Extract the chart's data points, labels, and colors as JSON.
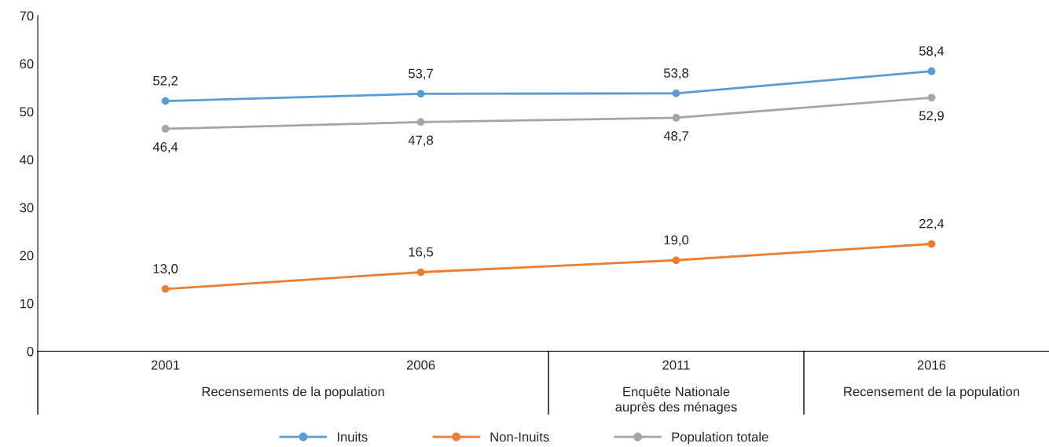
{
  "chart_data": {
    "type": "line",
    "categories": [
      "2001",
      "2006",
      "2011",
      "2016"
    ],
    "series": [
      {
        "name": "Inuits",
        "color": "#5b9bd5",
        "values": [
          52.2,
          53.7,
          53.8,
          58.4
        ],
        "value_labels": [
          "52,2",
          "53,7",
          "53,8",
          "58,4"
        ]
      },
      {
        "name": "Non-Inuits",
        "color": "#ed7d31",
        "values": [
          13.0,
          16.5,
          19.0,
          22.4
        ],
        "value_labels": [
          "13,0",
          "16,5",
          "19,0",
          "22,4"
        ]
      },
      {
        "name": "Population totale",
        "color": "#a5a5a5",
        "values": [
          46.4,
          47.8,
          48.7,
          52.9
        ],
        "value_labels": [
          "46,4",
          "47,8",
          "48,7",
          "52,9"
        ]
      }
    ],
    "ylim": [
      0,
      70
    ],
    "yticks": [
      0,
      10,
      20,
      30,
      40,
      50,
      60,
      70
    ],
    "annotations": [
      "Recensements de la population",
      "Enquête Nationale\nauprès des ménages",
      "Recensement de la population"
    ],
    "marker": "circle",
    "line_style": "solid",
    "grid": false,
    "legend": "bottom"
  }
}
